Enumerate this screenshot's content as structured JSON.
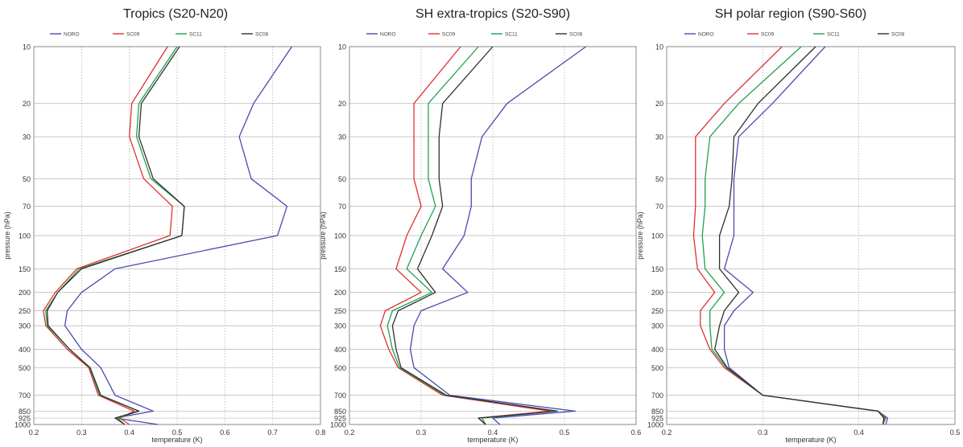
{
  "chart_data": [
    {
      "type": "line",
      "title": "Tropics (S20-N20)",
      "xlabel": "temperature (K)",
      "ylabel": "pressure (hPa)",
      "xlim": [
        0.2,
        0.8
      ],
      "xticks": [
        "0.2",
        "0.3",
        "0.4",
        "0.5",
        "0.6",
        "0.7",
        "0.8"
      ],
      "y_scale": "log",
      "y_inverted": true,
      "ylim": [
        1000,
        10
      ],
      "yticks": [
        10,
        20,
        30,
        50,
        70,
        100,
        150,
        200,
        250,
        300,
        400,
        500,
        700,
        850,
        925,
        1000
      ],
      "grid": true,
      "legend_position": "top",
      "pressure_levels": [
        10,
        20,
        30,
        50,
        70,
        100,
        150,
        200,
        250,
        300,
        400,
        500,
        700,
        850,
        925,
        1000
      ],
      "series": [
        {
          "name": "NORO",
          "color": "#4a4ab0",
          "values": [
            0.74,
            0.66,
            0.63,
            0.655,
            0.73,
            0.71,
            0.37,
            0.3,
            0.27,
            0.265,
            0.3,
            0.34,
            0.37,
            0.45,
            0.37,
            0.46
          ]
        },
        {
          "name": "SC09",
          "color": "#e03030",
          "values": [
            0.48,
            0.405,
            0.4,
            0.43,
            0.49,
            0.485,
            0.29,
            0.245,
            0.22,
            0.225,
            0.27,
            0.315,
            0.335,
            0.41,
            0.38,
            0.4
          ]
        },
        {
          "name": "SC11",
          "color": "#20a050",
          "values": [
            0.5,
            0.42,
            0.415,
            0.445,
            0.515,
            0.51,
            0.295,
            0.25,
            0.225,
            0.228,
            0.275,
            0.317,
            0.338,
            0.42,
            0.375,
            0.39
          ]
        },
        {
          "name": "SC08",
          "color": "#303030",
          "values": [
            0.505,
            0.425,
            0.42,
            0.45,
            0.515,
            0.51,
            0.3,
            0.25,
            0.228,
            0.23,
            0.275,
            0.318,
            0.34,
            0.42,
            0.37,
            0.39
          ]
        }
      ]
    },
    {
      "type": "line",
      "title": "SH extra-tropics (S20-S90)",
      "xlabel": "temperature (K)",
      "ylabel": "pressure (hPa)",
      "xlim": [
        0.2,
        0.6
      ],
      "xticks": [
        "0.2",
        "0.3",
        "0.4",
        "0.5",
        "0.6"
      ],
      "y_scale": "log",
      "y_inverted": true,
      "ylim": [
        1000,
        10
      ],
      "yticks": [
        10,
        20,
        30,
        50,
        70,
        100,
        150,
        200,
        250,
        300,
        400,
        500,
        700,
        850,
        925,
        1000
      ],
      "grid": true,
      "legend_position": "top",
      "pressure_levels": [
        10,
        20,
        30,
        50,
        70,
        100,
        150,
        200,
        250,
        300,
        400,
        500,
        700,
        850,
        925,
        1000
      ],
      "series": [
        {
          "name": "NORO",
          "color": "#4a4ab0",
          "values": [
            0.53,
            0.42,
            0.385,
            0.37,
            0.37,
            0.36,
            0.33,
            0.365,
            0.3,
            0.29,
            0.285,
            0.29,
            0.34,
            0.515,
            0.4,
            0.41
          ]
        },
        {
          "name": "SC09",
          "color": "#e03030",
          "values": [
            0.355,
            0.29,
            0.29,
            0.29,
            0.3,
            0.28,
            0.265,
            0.3,
            0.25,
            0.243,
            0.255,
            0.268,
            0.33,
            0.48,
            0.38,
            0.39
          ]
        },
        {
          "name": "SC11",
          "color": "#20a050",
          "values": [
            0.38,
            0.31,
            0.31,
            0.31,
            0.32,
            0.3,
            0.28,
            0.315,
            0.26,
            0.253,
            0.26,
            0.27,
            0.333,
            0.49,
            0.385,
            0.39
          ]
        },
        {
          "name": "SC08",
          "color": "#303030",
          "values": [
            0.4,
            0.33,
            0.325,
            0.325,
            0.33,
            0.315,
            0.295,
            0.32,
            0.268,
            0.26,
            0.265,
            0.272,
            0.335,
            0.49,
            0.38,
            0.39
          ]
        }
      ]
    },
    {
      "type": "line",
      "title": "SH polar region (S90-S60)",
      "xlabel": "temperature (K)",
      "ylabel": "pressure (hPa)",
      "xlim": [
        0.2,
        0.5
      ],
      "xticks": [
        "0.2",
        "0.3",
        "0.4",
        "0.5"
      ],
      "y_scale": "log",
      "y_inverted": true,
      "ylim": [
        1000,
        10
      ],
      "yticks": [
        10,
        20,
        30,
        50,
        70,
        100,
        150,
        200,
        250,
        300,
        400,
        500,
        700,
        850,
        925,
        1000
      ],
      "grid": true,
      "legend_position": "top",
      "pressure_levels": [
        10,
        20,
        30,
        50,
        70,
        100,
        150,
        200,
        250,
        300,
        400,
        500,
        700,
        850,
        925,
        1000
      ],
      "series": [
        {
          "name": "NORO",
          "color": "#4a4ab0",
          "values": [
            0.365,
            0.31,
            0.275,
            0.27,
            0.27,
            0.27,
            0.26,
            0.29,
            0.27,
            0.26,
            0.26,
            0.265,
            0.3,
            0.42,
            0.43,
            0.428
          ]
        },
        {
          "name": "SC09",
          "color": "#e03030",
          "values": [
            0.32,
            0.26,
            0.23,
            0.23,
            0.23,
            0.228,
            0.232,
            0.25,
            0.235,
            0.235,
            0.245,
            0.26,
            0.3,
            0.42,
            0.428,
            0.425
          ]
        },
        {
          "name": "SC11",
          "color": "#20a050",
          "values": [
            0.34,
            0.275,
            0.245,
            0.24,
            0.24,
            0.237,
            0.24,
            0.26,
            0.245,
            0.245,
            0.247,
            0.262,
            0.3,
            0.42,
            0.427,
            0.425
          ]
        },
        {
          "name": "SC08",
          "color": "#303030",
          "values": [
            0.355,
            0.295,
            0.27,
            0.268,
            0.265,
            0.255,
            0.255,
            0.275,
            0.26,
            0.255,
            0.25,
            0.263,
            0.3,
            0.42,
            0.426,
            0.425
          ]
        }
      ]
    }
  ]
}
